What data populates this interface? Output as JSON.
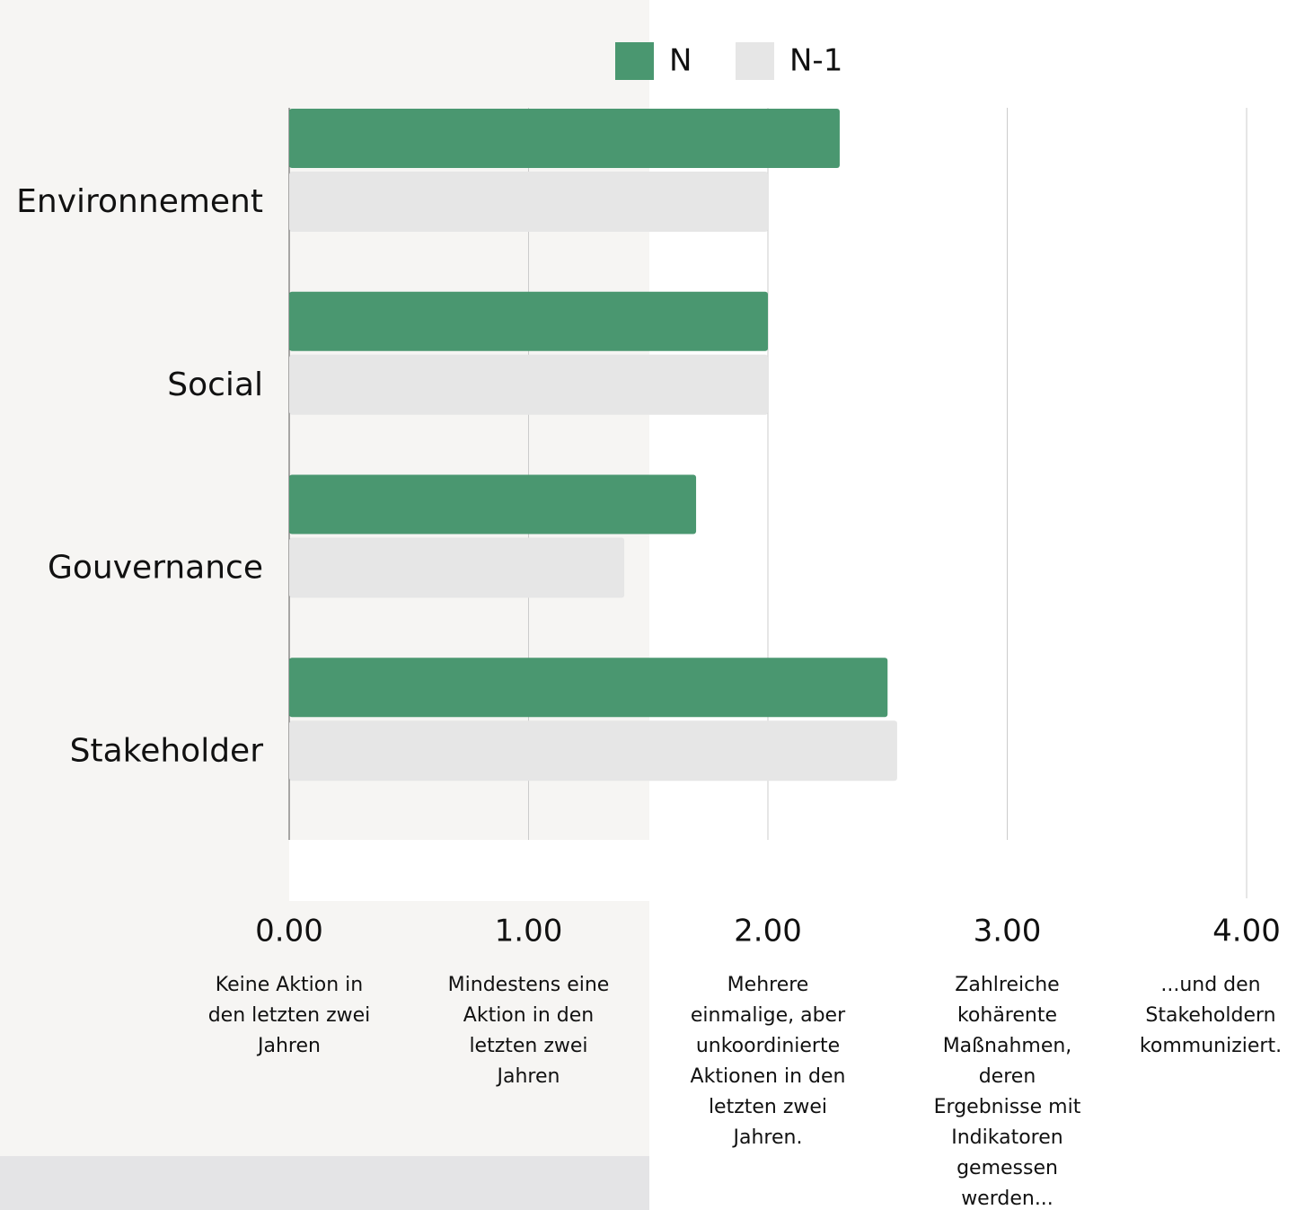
{
  "chart_data": {
    "type": "barh",
    "categories": [
      "Environnement",
      "Social",
      "Gouvernance",
      "Stakeholder"
    ],
    "series": [
      {
        "name": "N",
        "color": "#4a9770",
        "values": [
          2.3,
          2.0,
          1.7,
          2.5
        ]
      },
      {
        "name": "N-1",
        "color": "#e6e6e6",
        "values": [
          2.0,
          2.0,
          1.4,
          2.54
        ]
      }
    ],
    "xlim": [
      0,
      4
    ],
    "xticks": [
      {
        "value": 0,
        "label": "0.00"
      },
      {
        "value": 1,
        "label": "1.00"
      },
      {
        "value": 2,
        "label": "2.00"
      },
      {
        "value": 3,
        "label": "3.00"
      },
      {
        "value": 4,
        "label": "4.00"
      }
    ],
    "xtick_descriptions": [
      "Keine Aktion in den letzten zwei Jahren",
      "Mindestens eine Aktion in den letzten zwei Jahren",
      "Mehrere einmalige, aber unkoordinierte Aktionen in den letzten zwei Jahren.",
      "Zahlreiche kohärente Maßnahmen, deren Ergebnisse mit Indikatoren gemessen werden...",
      "...und den Stakeholdern kommuniziert."
    ],
    "grid": true,
    "legend": "top"
  }
}
